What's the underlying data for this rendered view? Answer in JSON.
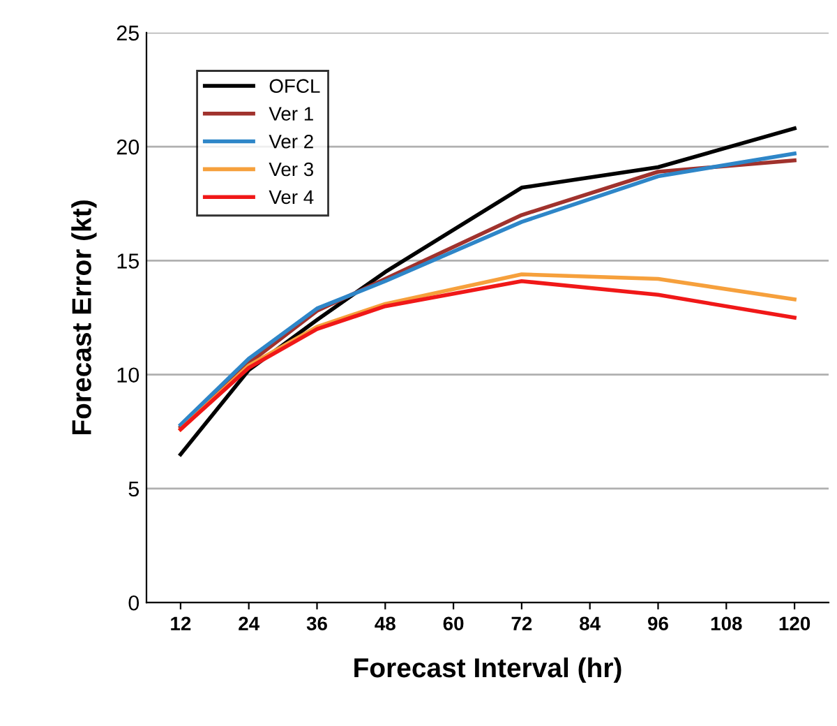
{
  "chart_data": {
    "type": "line",
    "xlabel": "Forecast Interval (hr)",
    "ylabel": "Forecast Error (kt)",
    "x": [
      12,
      24,
      36,
      48,
      72,
      96,
      120
    ],
    "xlim": [
      6,
      126
    ],
    "xticks": [
      12,
      24,
      36,
      48,
      60,
      72,
      84,
      96,
      108,
      120
    ],
    "ylim": [
      0,
      25
    ],
    "yticks": [
      0,
      5,
      10,
      15,
      20,
      25
    ],
    "grid": "y",
    "legend": "top left",
    "marker": "none",
    "line_style": "solid",
    "series": [
      {
        "name": "OFCL",
        "color": "#000000",
        "values": [
          6.5,
          10.2,
          12.4,
          14.5,
          18.2,
          19.1,
          20.8
        ]
      },
      {
        "name": "Ver 1",
        "color": "#a0322d",
        "values": [
          7.7,
          10.5,
          12.8,
          14.2,
          17.0,
          18.9,
          19.4
        ]
      },
      {
        "name": "Ver 2",
        "color": "#2e86c8",
        "values": [
          7.8,
          10.7,
          12.9,
          14.1,
          16.7,
          18.7,
          19.7
        ]
      },
      {
        "name": "Ver 3",
        "color": "#f6a03c",
        "values": [
          7.6,
          10.4,
          12.1,
          13.1,
          14.4,
          14.2,
          13.3
        ]
      },
      {
        "name": "Ver 4",
        "color": "#f01818",
        "values": [
          7.6,
          10.3,
          12.0,
          13.0,
          14.1,
          13.5,
          12.5
        ]
      }
    ]
  }
}
